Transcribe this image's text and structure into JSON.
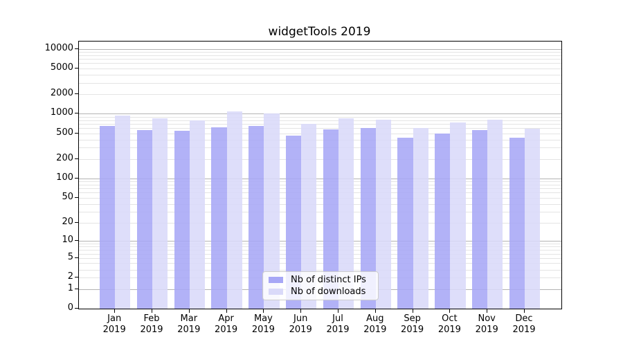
{
  "chart_data": {
    "type": "bar",
    "title": "widgetTools 2019",
    "y_scale": "log10(1+x)",
    "grid": true,
    "legend_position": "lower center",
    "categories": [
      "Jan",
      "Feb",
      "Mar",
      "Apr",
      "May",
      "Jun",
      "Jul",
      "Aug",
      "Sep",
      "Oct",
      "Nov",
      "Dec"
    ],
    "category_year": "2019",
    "series": [
      {
        "name": "Nb of distinct IPs",
        "color": "#a7a7f6",
        "values": [
          650,
          560,
          545,
          620,
          655,
          465,
          570,
          605,
          425,
          495,
          560,
          430
        ]
      },
      {
        "name": "Nb of downloads",
        "color": "#dadaf9",
        "values": [
          930,
          845,
          800,
          1080,
          1000,
          705,
          860,
          805,
          600,
          730,
          810,
          595
        ]
      }
    ],
    "y_tick_labels": [
      "10000",
      "5000",
      "2000",
      "1000",
      "500",
      "200",
      "100",
      "50",
      "20",
      "10",
      "5",
      "2",
      "1",
      "0"
    ],
    "ylim": [
      0,
      12800
    ],
    "grid_major_color": "#b3b3b3",
    "grid_minor_color": "#e4e4e4",
    "axis_color": "#000000"
  }
}
